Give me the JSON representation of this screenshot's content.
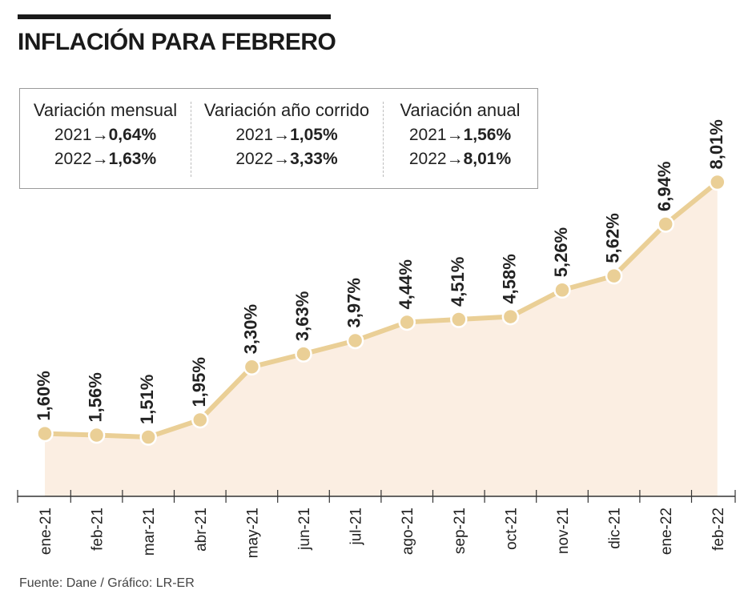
{
  "title": "INFLACIÓN PARA FEBRERO",
  "source": "Fuente: Dane / Gráfico: LR-ER",
  "colors": {
    "line": "#eacf96",
    "fill": "#fbeee2",
    "axis": "#333333",
    "text": "#222222"
  },
  "summary": [
    {
      "header": "Variación mensual",
      "rows": [
        {
          "year": "2021",
          "arrow": "→",
          "value": "0,64%"
        },
        {
          "year": "2022",
          "arrow": "→",
          "value": "1,63%"
        }
      ]
    },
    {
      "header": "Variación año corrido",
      "rows": [
        {
          "year": "2021",
          "arrow": "→",
          "value": "1,05%"
        },
        {
          "year": "2022",
          "arrow": "→",
          "value": "3,33%"
        }
      ]
    },
    {
      "header": "Variación anual",
      "rows": [
        {
          "year": "2021",
          "arrow": "→",
          "value": "1,56%"
        },
        {
          "year": "2022",
          "arrow": "→",
          "value": "8,01%"
        }
      ]
    }
  ],
  "chart_data": {
    "type": "area",
    "categories": [
      "ene-21",
      "feb-21",
      "mar-21",
      "abr-21",
      "may-21",
      "jun-21",
      "jul-21",
      "ago-21",
      "sep-21",
      "oct-21",
      "nov-21",
      "dic-21",
      "ene-22",
      "feb-22"
    ],
    "values": [
      1.6,
      1.56,
      1.51,
      1.95,
      3.3,
      3.63,
      3.97,
      4.44,
      4.51,
      4.58,
      5.26,
      5.62,
      6.94,
      8.01
    ],
    "labels": [
      "1,60%",
      "1,56%",
      "1,51%",
      "1,95%",
      "3,30%",
      "3,63%",
      "3,97%",
      "4,44%",
      "4,51%",
      "4,58%",
      "5,26%",
      "5,62%",
      "6,94%",
      "8,01%"
    ],
    "title": "INFLACIÓN PARA FEBRERO",
    "xlabel": "",
    "ylabel": "",
    "ylim": [
      0,
      8.5
    ],
    "grid": false,
    "legend": "none"
  }
}
